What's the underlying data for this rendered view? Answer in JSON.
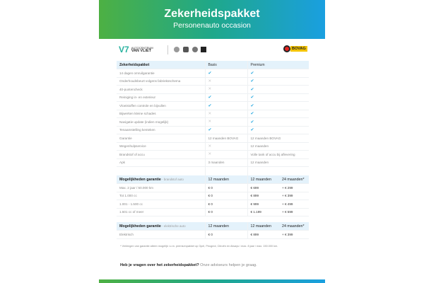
{
  "header": {
    "title": "Zekerheidspakket",
    "subtitle": "Personenauto occasion"
  },
  "logos": {
    "brand_line1": "AUTOCENTRUM",
    "brand_line2": "VAN VLIET",
    "bovag": "BOVAG",
    "car_brands": [
      "opel-icon",
      "peugeot-icon",
      "citroen-icon",
      "ds-icon"
    ]
  },
  "table1": {
    "headers": [
      "Zekerheidspakket",
      "Basis",
      "Premium"
    ],
    "rows": [
      {
        "label": "14 dagen omruilgarantie",
        "basis": "check",
        "premium": "check"
      },
      {
        "label": "Onderhoudsbeurt volgens fabrieksschema",
        "basis": "cross",
        "premium": "check"
      },
      {
        "label": "40-puntencheck",
        "basis": "cross",
        "premium": "check"
      },
      {
        "label": "Reiniging in- en exterieur",
        "basis": "check",
        "premium": "check"
      },
      {
        "label": "Vloeistoffen controle en bijvullen",
        "basis": "check",
        "premium": "check"
      },
      {
        "label": "Bijwerken kleine schades",
        "basis": "cross",
        "premium": "check"
      },
      {
        "label": "Navigatie update (indien mogelijk)",
        "basis": "cross",
        "premium": "check"
      },
      {
        "label": "Tenaamstelling kenteken",
        "basis": "check",
        "premium": "check"
      },
      {
        "label": "Garantie",
        "basis": "12 maanden BOVAG",
        "premium": "12 maanden BOVAG"
      },
      {
        "label": "Wegenhulpservice",
        "basis": "cross",
        "premium": "12 maanden"
      },
      {
        "label": "Brandstof of accu",
        "basis": "cross",
        "premium": "Volle tank of accu bij aflevering"
      },
      {
        "label": "Apk",
        "basis": "3 maanden",
        "premium": "12 maanden"
      }
    ]
  },
  "table2": {
    "title": "Mogelijkheden garantie",
    "subtitle": " - brandstof auto",
    "headers": [
      "12 maanden",
      "12 maanden",
      "24 maanden*"
    ],
    "rows": [
      [
        "Max. 2 jaar / 50.000 km",
        "€ 0",
        "€ 699",
        "+ € 299"
      ],
      [
        "Tot 1.000 cc",
        "€ 0",
        "€ 899",
        "+ € 399"
      ],
      [
        "1.001 - 1.500 cc",
        "€ 0",
        "€ 999",
        "+ € 499"
      ],
      [
        "1.501 cc of meer",
        "€ 0",
        "€ 1.199",
        "+ € 599"
      ]
    ]
  },
  "table3": {
    "title": "Mogelijkheden garantie",
    "subtitle": " - elektrische auto",
    "headers": [
      "12 maanden",
      "12 maanden",
      "24 maanden*"
    ],
    "rows": [
      [
        "Elektrisch",
        "€ 0",
        "€ 899",
        "+ € 399"
      ]
    ]
  },
  "footnote": "* Verlengen van garantie alleen mogelijk i.c.m. premiumpakket op Opel, Peugeot, Citroën en Always / max. 8 jaar / max. 150.000 km.",
  "question": {
    "bold": "Heb je vragen over het zekerheidspakket?",
    "rest": " Onze adviseurs helpen je graag."
  },
  "colors": {
    "accent": "#2aa9e0",
    "green": "#4db043",
    "header_row": "#e4f2fb"
  }
}
